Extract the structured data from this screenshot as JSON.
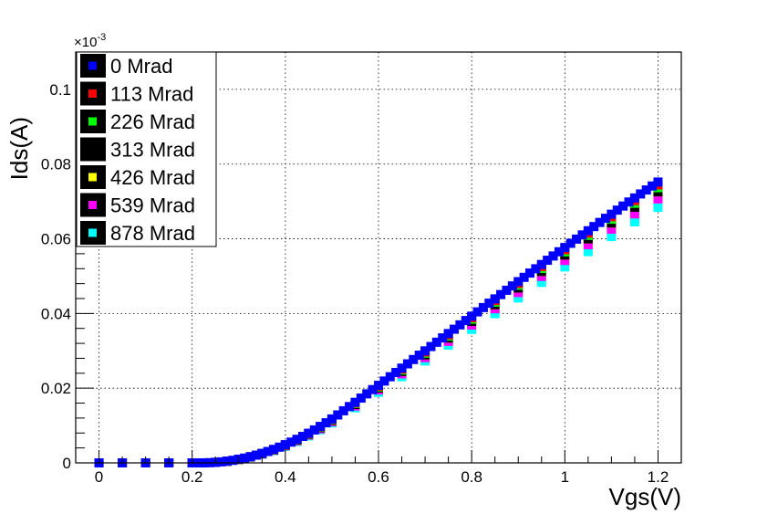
{
  "chart_data": {
    "type": "scatter",
    "xlabel": "Vgs(V)",
    "ylabel": "Ids(A)",
    "y_exponent_label": "×10",
    "y_exponent_power": "-3",
    "xlim": [
      -0.05,
      1.25
    ],
    "ylim": [
      0,
      0.11
    ],
    "x_ticks": [
      0,
      0.2,
      0.4,
      0.6,
      0.8,
      1,
      1.2
    ],
    "x_tick_labels": [
      "0",
      "0.2",
      "0.4",
      "0.6",
      "0.8",
      "1",
      "1.2"
    ],
    "y_ticks": [
      0,
      0.02,
      0.04,
      0.06,
      0.08,
      0.1
    ],
    "y_tick_labels": [
      "0",
      "0.02",
      "0.04",
      "0.06",
      "0.08",
      "0.1"
    ],
    "grid": true,
    "legend_position": "top-left",
    "vt": 0.22,
    "model_points_x": [
      0,
      0.05,
      0.1,
      0.15,
      0.2,
      0.25,
      0.3,
      0.35,
      0.4,
      0.45,
      0.5,
      0.55,
      0.6,
      0.65,
      0.7,
      0.75,
      0.8,
      0.85,
      0.9,
      0.95,
      1.0,
      1.05,
      1.1,
      1.15,
      1.2
    ],
    "series": [
      {
        "name": "0 Mrad",
        "color": "#0000ff",
        "scale": 1.0,
        "step": 0.0125
      },
      {
        "name": "113 Mrad",
        "color": "#ff0000",
        "scale": 0.99,
        "step": 0.05
      },
      {
        "name": "226 Mrad",
        "color": "#00ff00",
        "scale": 0.98,
        "step": 0.05
      },
      {
        "name": "313 Mrad",
        "color": "#000000",
        "scale": 0.965,
        "step": 0.05
      },
      {
        "name": "426 Mrad",
        "color": "#ffff00",
        "scale": 0.965,
        "step": 0.05
      },
      {
        "name": "539 Mrad",
        "color": "#ff00ff",
        "scale": 0.94,
        "step": 0.05
      },
      {
        "name": "878 Mrad",
        "color": "#00ffff",
        "scale": 0.91,
        "step": 0.05
      }
    ]
  }
}
